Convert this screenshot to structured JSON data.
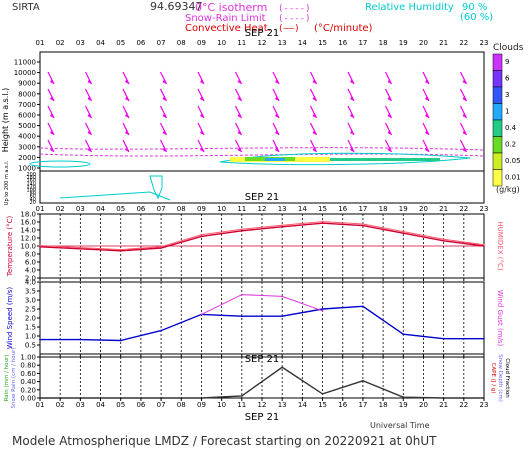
{
  "header": {
    "station": "SIRTA",
    "coords": "94.69347",
    "legend_left": [
      {
        "label": "0°C isotherm",
        "sample": "(----)",
        "color": "#dd33dd"
      },
      {
        "label": "Snow-Rain Limit",
        "sample": "(----)",
        "color": "#dd33dd"
      },
      {
        "label": "Convective Heat.",
        "sample": "(——)",
        "unit": "(°C/minute)",
        "color": "#dd0000"
      }
    ],
    "legend_right": [
      {
        "label": "Relative Humidity",
        "value": "90 %",
        "color": "#00cccc"
      },
      {
        "label": "",
        "value": "(60 %)",
        "color": "#00cccc"
      }
    ]
  },
  "footer": {
    "universal_time": "Universal Time",
    "caption": "Modele Atmospherique LMDZ / Forecast starting on 20220921 at 0hUT"
  },
  "colorbar": {
    "title": "Clouds",
    "unit": "(g/kg)",
    "ticks": [
      "9",
      "6",
      "3",
      "1",
      "0.4",
      "0.2",
      "0.05",
      "0.01"
    ],
    "colors": [
      "#cc33ff",
      "#7733ff",
      "#3355ff",
      "#22aaff",
      "#22cc88",
      "#66dd22",
      "#ccee22",
      "#ffff44"
    ]
  },
  "chart_data": [
    {
      "type": "heatmap",
      "name": "cross-section",
      "date_label": "SEP 21",
      "x": [
        "01",
        "02",
        "03",
        "04",
        "05",
        "06",
        "07",
        "08",
        "09",
        "10",
        "11",
        "12",
        "13",
        "14",
        "15",
        "16",
        "17",
        "18",
        "19",
        "20",
        "21",
        "22",
        "23"
      ],
      "ylabel": "Height (m a.s.l.)",
      "ylabel2": "Up to 200 m a.s.l.",
      "yticks_upper": [
        "11000",
        "10000",
        "9000",
        "8000",
        "7000",
        "6000",
        "5000",
        "4000",
        "3000",
        "2000",
        "1000"
      ],
      "yticks_lower": [
        "200",
        "180",
        "160",
        "140",
        "120",
        "100",
        "80",
        "60",
        "40",
        "20"
      ],
      "wind_arrow_color": "#ee00ee"
    },
    {
      "type": "line",
      "name": "temperature",
      "date_label": "SEP 21",
      "x": [
        "01",
        "02",
        "03",
        "04",
        "05",
        "06",
        "07",
        "08",
        "09",
        "10",
        "11",
        "12",
        "13",
        "14",
        "15",
        "16",
        "17",
        "18",
        "19",
        "20",
        "21",
        "22",
        "23"
      ],
      "ylabel": "Temperature (°C)",
      "ylabel_right": "HUMIDEX (°C)",
      "yticks": [
        "18.0",
        "16.0",
        "14.0",
        "12.0",
        "10.0",
        "8.0",
        "6.0",
        "4.0",
        "2.0"
      ],
      "ylim": [
        2,
        18
      ],
      "series": [
        {
          "name": "Temperature",
          "color": "#cc0033",
          "x": [
            1,
            3,
            5,
            7,
            9,
            11,
            13,
            15,
            17,
            19,
            21,
            23
          ],
          "values": [
            9.8,
            9.3,
            8.8,
            9.5,
            12.4,
            13.8,
            14.8,
            15.7,
            15.1,
            13.2,
            11.3,
            10.0
          ]
        },
        {
          "name": "HUMIDEX",
          "color": "#ff5566",
          "x": [
            1,
            3,
            5,
            7,
            9,
            11,
            13,
            15,
            17,
            19,
            21,
            23
          ],
          "values": [
            10.1,
            9.6,
            9.1,
            9.8,
            12.8,
            14.2,
            15.2,
            16.1,
            15.5,
            13.6,
            11.7,
            10.3
          ]
        }
      ],
      "ref_line": 10.0
    },
    {
      "type": "line",
      "name": "wind",
      "x": [
        "01",
        "02",
        "03",
        "04",
        "05",
        "06",
        "07",
        "08",
        "09",
        "10",
        "11",
        "12",
        "13",
        "14",
        "15",
        "16",
        "17",
        "18",
        "19",
        "20",
        "21",
        "22",
        "23"
      ],
      "ylabel": "Wind Speed (m/s)",
      "ylabel_right": "Wind Gust (m/s)",
      "yticks": [
        "4.0",
        "3.5",
        "3.0",
        "2.5",
        "2.0",
        "1.5",
        "1.0",
        "0.5"
      ],
      "ylim": [
        0,
        4
      ],
      "series": [
        {
          "name": "Wind Speed",
          "color": "#0000cc",
          "x": [
            1,
            3,
            5,
            7,
            9,
            11,
            13,
            15,
            17,
            19,
            21,
            23
          ],
          "values": [
            0.8,
            0.8,
            0.75,
            1.3,
            2.2,
            2.1,
            2.1,
            2.5,
            2.65,
            1.1,
            0.85,
            0.85
          ]
        },
        {
          "name": "Wind Gust",
          "color": "#dd33dd",
          "x": [
            9,
            11,
            13,
            15
          ],
          "values": [
            2.2,
            3.3,
            3.2,
            2.4
          ]
        }
      ]
    },
    {
      "type": "line",
      "name": "precipitation",
      "date_label": "SEP 21",
      "x": [
        "01",
        "02",
        "03",
        "04",
        "05",
        "06",
        "07",
        "08",
        "09",
        "10",
        "11",
        "12",
        "13",
        "14",
        "15",
        "16",
        "17",
        "18",
        "19",
        "20",
        "21",
        "22",
        "23"
      ],
      "ylabel_left": [
        "Rain (mm / hour)",
        "Snow Rain (cm / hour)"
      ],
      "ylabel_right": [
        "CAPE (J / g)",
        "Snow Depth (cm)",
        "Cloud Fraction"
      ],
      "yticks": [
        "1.00",
        "0.80",
        "0.60",
        "0.40",
        "0.20",
        "0.00"
      ],
      "ylim": [
        0,
        1
      ],
      "series": [
        {
          "name": "Rain",
          "color": "#333333",
          "x": [
            1,
            3,
            5,
            7,
            9,
            11,
            13,
            15,
            17,
            19,
            21,
            23
          ],
          "values": [
            0,
            0,
            0,
            0,
            0,
            0.05,
            0.75,
            0.1,
            0.42,
            0.02,
            0,
            0
          ]
        }
      ]
    }
  ]
}
